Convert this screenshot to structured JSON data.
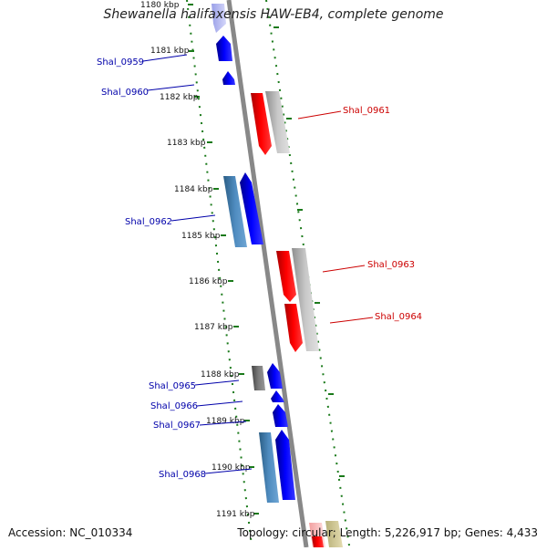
{
  "title": "Shewanella halifaxensis HAW-EB4, complete genome",
  "footer": {
    "accession": "Accession: NC_010334",
    "topology": "Topology: circular; Length: 5,226,917 bp; Genes: 4,433"
  },
  "colors": {
    "dark_blue": "#0000ee",
    "steel_blue": "#4682b4",
    "red": "#ee0000",
    "light_gray": "#bbbbbb",
    "dark_gray": "#666666",
    "axis": "#888888",
    "tick_green": "#1a7a1a",
    "label_blue": "#0000aa",
    "label_red": "#cc0000"
  },
  "scale_ticks": [
    "1180 kbp",
    "1181 kbp",
    "1182 kbp",
    "1183 kbp",
    "1184 kbp",
    "1185 kbp",
    "1186 kbp",
    "1187 kbp",
    "1188 kbp",
    "1189 kbp",
    "1190 kbp",
    "1191 kbp"
  ],
  "gene_labels": {
    "left": [
      "Shal_0959",
      "Shal_0960",
      "Shal_0962",
      "Shal_0965",
      "Shal_0966",
      "Shal_0967",
      "Shal_0968"
    ],
    "right": [
      "Shal_0961",
      "Shal_0963",
      "Shal_0964"
    ]
  }
}
